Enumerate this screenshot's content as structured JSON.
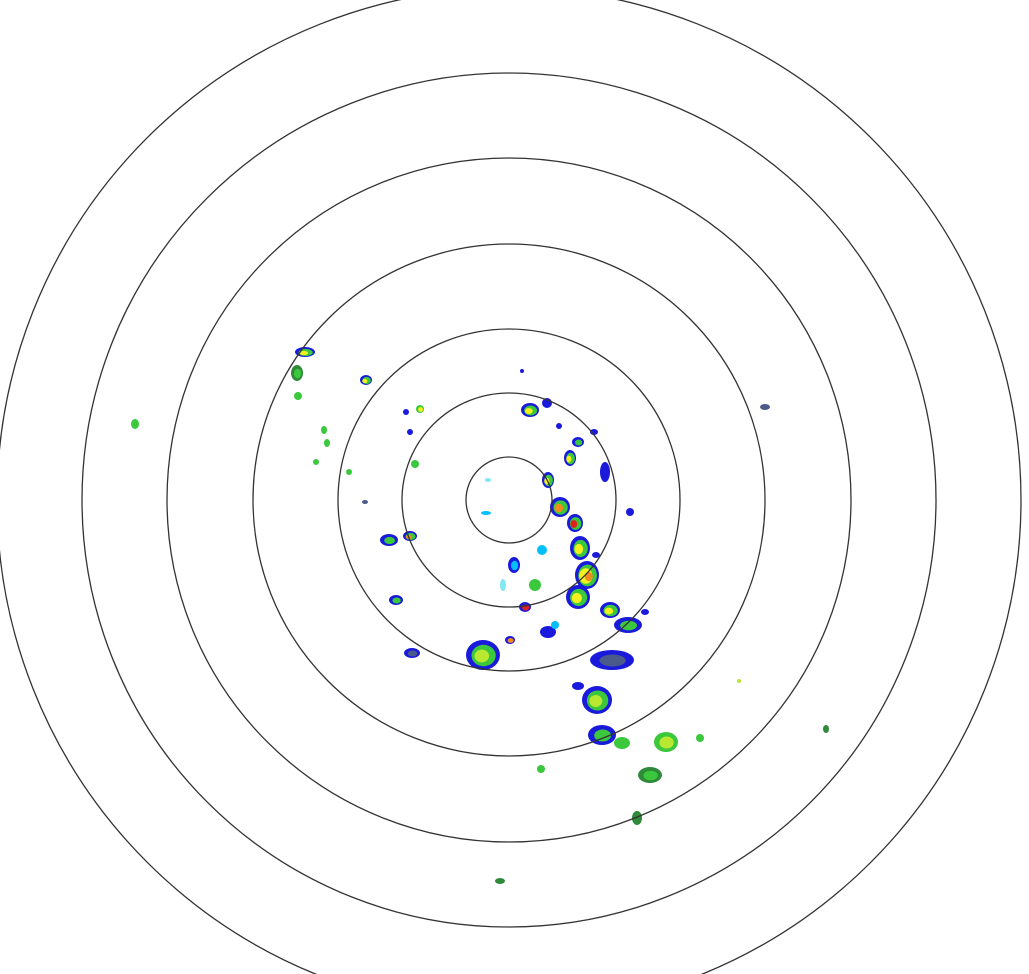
{
  "radar": {
    "ring_color": "#333333",
    "ring_count": 7,
    "reflectivity_colors": {
      "light_cyan": "#7fe8f0",
      "cyan": "#00bfff",
      "blue": "#1a1adc",
      "slate": "#4a5a8a",
      "dark_green": "#2f8a3a",
      "green": "#3cc83c",
      "yellow_green": "#b8e830",
      "yellow": "#f4f020",
      "orange": "#f08c1e",
      "red": "#e02020"
    }
  }
}
